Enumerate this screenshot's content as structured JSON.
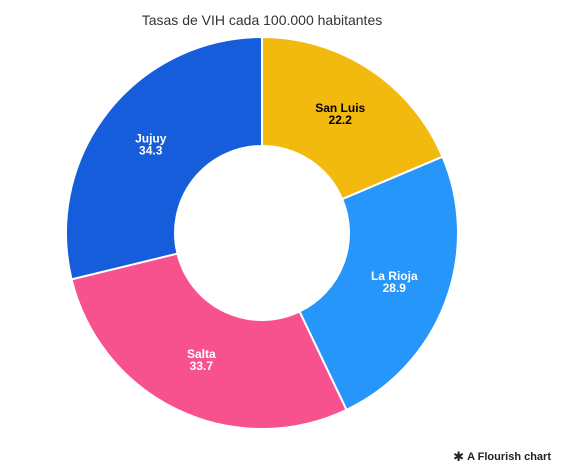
{
  "chart_data": {
    "type": "pie",
    "variant": "donut",
    "title": "Tasas de VIH cada 100.000 habitantes",
    "categories": [
      "San Luis",
      "La Rioja",
      "Salta",
      "Jujuy"
    ],
    "values": [
      22.2,
      28.9,
      33.7,
      34.3
    ],
    "value_labels": [
      "22.2",
      "28.9",
      "33.7",
      "34.3"
    ],
    "colors": [
      "#f2b90f",
      "#2696fa",
      "#f7528d",
      "#155ddb"
    ],
    "label_colors": [
      "#000000",
      "#ffffff",
      "#ffffff",
      "#ffffff"
    ],
    "start": "top",
    "direction": "clockwise"
  },
  "attribution": {
    "icon": "flourish-star-icon",
    "text": "A Flourish chart"
  }
}
